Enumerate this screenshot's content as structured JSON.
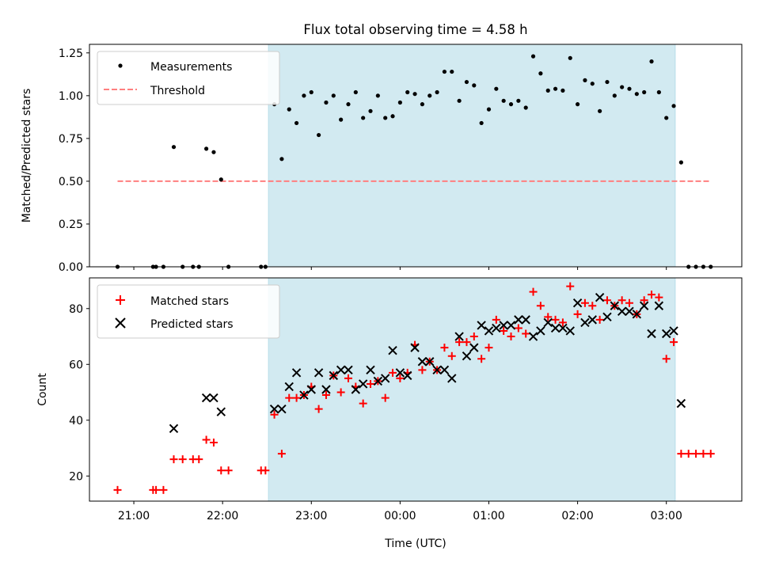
{
  "chart_data": {
    "title": "Flux total observing time = 4.58 h",
    "xlabel": "Time (UTC)",
    "x_unit": "hours UTC",
    "x_range": [
      "20:30",
      "03:51"
    ],
    "x_ticks": [
      "21:00",
      "22:00",
      "23:00",
      "00:00",
      "01:00",
      "02:00",
      "03:00"
    ],
    "shaded_interval": [
      "22:31",
      "03:06"
    ],
    "shade_color": "#add8e6",
    "panels": [
      {
        "type": "scatter",
        "ylabel": "Matched/Predicted stars",
        "ylim": [
          0,
          1.3
        ],
        "y_ticks": [
          "0.00",
          "0.25",
          "0.50",
          "0.75",
          "1.00",
          "1.25"
        ],
        "legend_position": "upper-left",
        "series": [
          {
            "name": "Measurements",
            "color": "#000000",
            "marker": "dot",
            "points": [
              [
                "20:49",
                0.0
              ],
              [
                "21:13",
                0.0
              ],
              [
                "21:15",
                0.0
              ],
              [
                "21:20",
                0.0
              ],
              [
                "21:27",
                0.7
              ],
              [
                "21:33",
                0.0
              ],
              [
                "21:40",
                0.0
              ],
              [
                "21:44",
                0.0
              ],
              [
                "21:49",
                0.69
              ],
              [
                "21:54",
                0.67
              ],
              [
                "21:59",
                0.51
              ],
              [
                "22:04",
                0.0
              ],
              [
                "22:26",
                0.0
              ],
              [
                "22:29",
                0.0
              ],
              [
                "22:35",
                0.95
              ],
              [
                "22:40",
                0.63
              ],
              [
                "22:45",
                0.92
              ],
              [
                "22:50",
                0.84
              ],
              [
                "22:55",
                1.0
              ],
              [
                "23:00",
                1.02
              ],
              [
                "23:05",
                0.77
              ],
              [
                "23:10",
                0.96
              ],
              [
                "23:15",
                1.0
              ],
              [
                "23:20",
                0.86
              ],
              [
                "23:25",
                0.95
              ],
              [
                "23:30",
                1.02
              ],
              [
                "23:35",
                0.87
              ],
              [
                "23:40",
                0.91
              ],
              [
                "23:45",
                1.0
              ],
              [
                "23:50",
                0.87
              ],
              [
                "23:55",
                0.88
              ],
              [
                "00:00",
                0.96
              ],
              [
                "00:05",
                1.02
              ],
              [
                "00:10",
                1.01
              ],
              [
                "00:15",
                0.95
              ],
              [
                "00:20",
                1.0
              ],
              [
                "00:25",
                1.02
              ],
              [
                "00:30",
                1.14
              ],
              [
                "00:35",
                1.14
              ],
              [
                "00:40",
                0.97
              ],
              [
                "00:45",
                1.08
              ],
              [
                "00:50",
                1.06
              ],
              [
                "00:55",
                0.84
              ],
              [
                "01:00",
                0.92
              ],
              [
                "01:05",
                1.04
              ],
              [
                "01:10",
                0.97
              ],
              [
                "01:15",
                0.95
              ],
              [
                "01:20",
                0.97
              ],
              [
                "01:25",
                0.93
              ],
              [
                "01:30",
                1.23
              ],
              [
                "01:35",
                1.13
              ],
              [
                "01:40",
                1.03
              ],
              [
                "01:45",
                1.04
              ],
              [
                "01:50",
                1.03
              ],
              [
                "01:55",
                1.22
              ],
              [
                "02:00",
                0.95
              ],
              [
                "02:05",
                1.09
              ],
              [
                "02:10",
                1.07
              ],
              [
                "02:15",
                0.91
              ],
              [
                "02:20",
                1.08
              ],
              [
                "02:25",
                1.0
              ],
              [
                "02:30",
                1.05
              ],
              [
                "02:35",
                1.04
              ],
              [
                "02:40",
                1.01
              ],
              [
                "02:45",
                1.02
              ],
              [
                "02:50",
                1.2
              ],
              [
                "02:55",
                1.02
              ],
              [
                "03:00",
                0.87
              ],
              [
                "03:05",
                0.94
              ],
              [
                "03:10",
                0.61
              ],
              [
                "03:15",
                0.0
              ],
              [
                "03:20",
                0.0
              ],
              [
                "03:25",
                0.0
              ],
              [
                "03:30",
                0.0
              ]
            ]
          },
          {
            "name": "Threshold",
            "color": "#ff7f7f",
            "line_style": "dashed",
            "value": 0.5,
            "x_range": [
              "20:49",
              "03:30"
            ]
          }
        ]
      },
      {
        "type": "scatter",
        "ylabel": "Count",
        "ylim": [
          11,
          91
        ],
        "y_ticks": [
          "20",
          "40",
          "60",
          "80"
        ],
        "legend_position": "upper-left",
        "series": [
          {
            "name": "Matched stars",
            "color": "#ff0000",
            "marker": "plus",
            "points": [
              [
                "20:49",
                15
              ],
              [
                "21:13",
                15
              ],
              [
                "21:15",
                15
              ],
              [
                "21:20",
                15
              ],
              [
                "21:27",
                26
              ],
              [
                "21:33",
                26
              ],
              [
                "21:40",
                26
              ],
              [
                "21:44",
                26
              ],
              [
                "21:49",
                33
              ],
              [
                "21:54",
                32
              ],
              [
                "21:59",
                22
              ],
              [
                "22:04",
                22
              ],
              [
                "22:26",
                22
              ],
              [
                "22:29",
                22
              ],
              [
                "22:35",
                42
              ],
              [
                "22:40",
                28
              ],
              [
                "22:45",
                48
              ],
              [
                "22:50",
                48
              ],
              [
                "22:55",
                49
              ],
              [
                "23:00",
                52
              ],
              [
                "23:05",
                44
              ],
              [
                "23:10",
                49
              ],
              [
                "23:15",
                56
              ],
              [
                "23:20",
                50
              ],
              [
                "23:25",
                55
              ],
              [
                "23:30",
                52
              ],
              [
                "23:35",
                46
              ],
              [
                "23:40",
                53
              ],
              [
                "23:45",
                54
              ],
              [
                "23:50",
                48
              ],
              [
                "23:55",
                57
              ],
              [
                "00:00",
                55
              ],
              [
                "00:05",
                57
              ],
              [
                "00:10",
                67
              ],
              [
                "00:15",
                58
              ],
              [
                "00:20",
                61
              ],
              [
                "00:25",
                58
              ],
              [
                "00:30",
                66
              ],
              [
                "00:35",
                63
              ],
              [
                "00:40",
                68
              ],
              [
                "00:45",
                68
              ],
              [
                "00:50",
                70
              ],
              [
                "00:55",
                62
              ],
              [
                "01:00",
                66
              ],
              [
                "01:05",
                76
              ],
              [
                "01:10",
                72
              ],
              [
                "01:15",
                70
              ],
              [
                "01:20",
                73
              ],
              [
                "01:25",
                71
              ],
              [
                "01:30",
                86
              ],
              [
                "01:35",
                81
              ],
              [
                "01:40",
                77
              ],
              [
                "01:45",
                76
              ],
              [
                "01:50",
                75
              ],
              [
                "01:55",
                88
              ],
              [
                "02:00",
                78
              ],
              [
                "02:05",
                82
              ],
              [
                "02:10",
                81
              ],
              [
                "02:15",
                76
              ],
              [
                "02:20",
                83
              ],
              [
                "02:25",
                81
              ],
              [
                "02:30",
                83
              ],
              [
                "02:35",
                82
              ],
              [
                "02:40",
                78
              ],
              [
                "02:45",
                83
              ],
              [
                "02:50",
                85
              ],
              [
                "02:55",
                84
              ],
              [
                "03:00",
                62
              ],
              [
                "03:05",
                68
              ],
              [
                "03:10",
                28
              ],
              [
                "03:15",
                28
              ],
              [
                "03:20",
                28
              ],
              [
                "03:25",
                28
              ],
              [
                "03:30",
                28
              ]
            ]
          },
          {
            "name": "Predicted stars",
            "color": "#000000",
            "marker": "x",
            "points": [
              [
                "21:27",
                37
              ],
              [
                "21:49",
                48
              ],
              [
                "21:54",
                48
              ],
              [
                "21:59",
                43
              ],
              [
                "22:35",
                44
              ],
              [
                "22:40",
                44
              ],
              [
                "22:45",
                52
              ],
              [
                "22:50",
                57
              ],
              [
                "22:55",
                49
              ],
              [
                "23:00",
                51
              ],
              [
                "23:05",
                57
              ],
              [
                "23:10",
                51
              ],
              [
                "23:15",
                56
              ],
              [
                "23:20",
                58
              ],
              [
                "23:25",
                58
              ],
              [
                "23:30",
                51
              ],
              [
                "23:35",
                53
              ],
              [
                "23:40",
                58
              ],
              [
                "23:45",
                54
              ],
              [
                "23:50",
                55
              ],
              [
                "23:55",
                65
              ],
              [
                "00:00",
                57
              ],
              [
                "00:05",
                56
              ],
              [
                "00:10",
                66
              ],
              [
                "00:15",
                61
              ],
              [
                "00:20",
                61
              ],
              [
                "00:25",
                58
              ],
              [
                "00:30",
                58
              ],
              [
                "00:35",
                55
              ],
              [
                "00:40",
                70
              ],
              [
                "00:45",
                63
              ],
              [
                "00:50",
                66
              ],
              [
                "00:55",
                74
              ],
              [
                "01:00",
                72
              ],
              [
                "01:05",
                73
              ],
              [
                "01:10",
                74
              ],
              [
                "01:15",
                74
              ],
              [
                "01:20",
                76
              ],
              [
                "01:25",
                76
              ],
              [
                "01:30",
                70
              ],
              [
                "01:35",
                72
              ],
              [
                "01:40",
                75
              ],
              [
                "01:45",
                73
              ],
              [
                "01:50",
                73
              ],
              [
                "01:55",
                72
              ],
              [
                "02:00",
                82
              ],
              [
                "02:05",
                75
              ],
              [
                "02:10",
                76
              ],
              [
                "02:15",
                84
              ],
              [
                "02:20",
                77
              ],
              [
                "02:25",
                81
              ],
              [
                "02:30",
                79
              ],
              [
                "02:35",
                79
              ],
              [
                "02:40",
                78
              ],
              [
                "02:45",
                81
              ],
              [
                "02:50",
                71
              ],
              [
                "02:55",
                81
              ],
              [
                "03:00",
                71
              ],
              [
                "03:05",
                72
              ],
              [
                "03:10",
                46
              ]
            ]
          }
        ]
      }
    ]
  }
}
